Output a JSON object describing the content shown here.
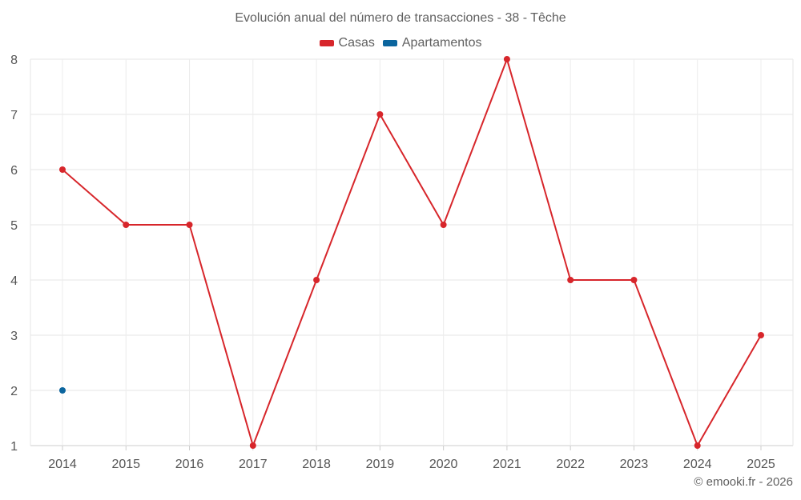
{
  "chart_data": {
    "type": "line",
    "title": "Evolución anual del número de transacciones - 38 - Têche",
    "xlabel": "",
    "ylabel": "",
    "categories": [
      "2014",
      "2015",
      "2016",
      "2017",
      "2018",
      "2019",
      "2020",
      "2021",
      "2022",
      "2023",
      "2024",
      "2025"
    ],
    "ylim": [
      1,
      8
    ],
    "yticks": [
      1,
      2,
      3,
      4,
      5,
      6,
      7,
      8
    ],
    "grid": true,
    "legend_position": "top",
    "series": [
      {
        "name": "Casas",
        "color": "#d7262b",
        "values": [
          6,
          5,
          5,
          1,
          4,
          7,
          5,
          8,
          4,
          4,
          1,
          3
        ]
      },
      {
        "name": "Apartamentos",
        "color": "#0b659e",
        "values": [
          2,
          null,
          null,
          null,
          null,
          null,
          null,
          null,
          null,
          null,
          null,
          null
        ]
      }
    ]
  },
  "credit": "© emooki.fr - 2026"
}
